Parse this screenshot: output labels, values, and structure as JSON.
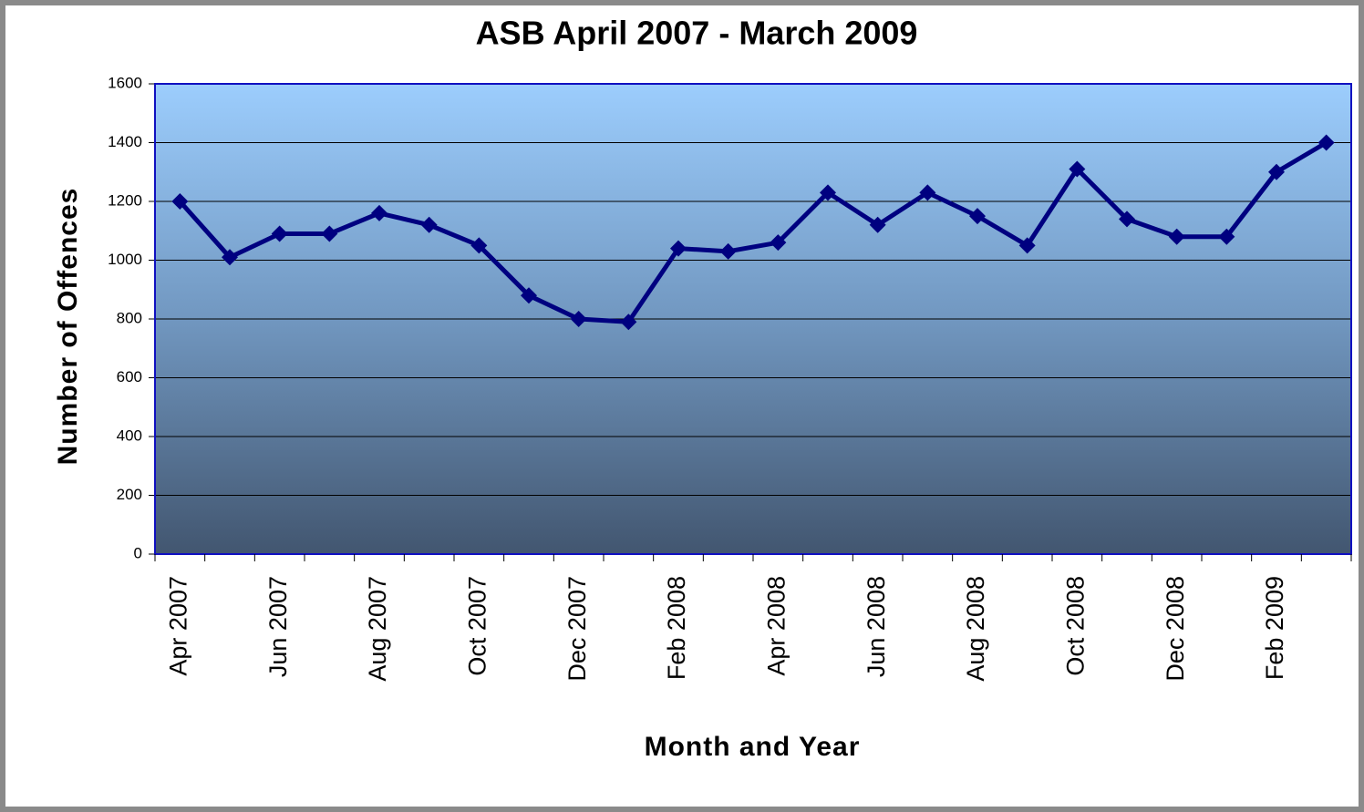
{
  "chart_data": {
    "type": "line",
    "title": "ASB April 2007 - March 2009",
    "x_label": "Month and Year",
    "y_label": "Number of Offences",
    "categories": [
      "Apr 2007",
      null,
      "Jun 2007",
      null,
      "Aug 2007",
      null,
      "Oct 2007",
      null,
      "Dec 2007",
      null,
      "Feb 2008",
      null,
      "Apr 2008",
      null,
      "Jun 2008",
      null,
      "Aug 2008",
      null,
      "Oct 2008",
      null,
      "Dec 2008",
      null,
      "Feb 2009",
      null
    ],
    "series": [
      {
        "name": "Number of Offences",
        "color": "#000080",
        "values": [
          1200,
          1010,
          1090,
          1090,
          1160,
          1120,
          1050,
          880,
          800,
          790,
          1040,
          1030,
          1060,
          1230,
          1120,
          1230,
          1150,
          1050,
          1310,
          1140,
          1080,
          1080,
          1300,
          1400
        ]
      }
    ],
    "ylim": [
      0,
      1600
    ],
    "yticks": [
      0,
      200,
      400,
      600,
      800,
      1000,
      1200,
      1400,
      1600
    ],
    "grid": true
  }
}
